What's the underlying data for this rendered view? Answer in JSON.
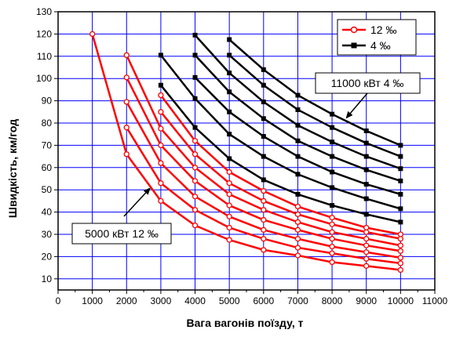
{
  "chart_data": {
    "type": "line",
    "xlabel": "Вага вагонів поїзду, т",
    "ylabel": "Швидкість, км/год",
    "xlim": [
      0,
      11000
    ],
    "ylim": [
      5,
      130
    ],
    "xticks": [
      0,
      1000,
      2000,
      3000,
      4000,
      5000,
      6000,
      7000,
      8000,
      9000,
      10000,
      11000
    ],
    "yticks": [
      10,
      20,
      30,
      40,
      50,
      60,
      70,
      80,
      90,
      100,
      110,
      120,
      130
    ],
    "grid": true,
    "gridColor": "#0000ff",
    "legend": {
      "position": "top-right",
      "items": [
        {
          "label": "12 ‰",
          "color": "#ff0000",
          "marker": "circle"
        },
        {
          "label": "4 ‰",
          "color": "#000000",
          "marker": "square"
        }
      ]
    },
    "annotations": [
      {
        "text": "11000 кВт 4 ‰",
        "box": "top-right",
        "arrow_to": [
          8400,
          82
        ]
      },
      {
        "text": "5000 кВт 12 ‰",
        "box": "bottom-left",
        "arrow_to": [
          2700,
          51
        ]
      }
    ],
    "series": [
      {
        "group": "12 ‰",
        "color": "#ff0000",
        "marker": "circle",
        "x": [
          1000,
          2000,
          3000,
          4000,
          5000,
          6000,
          7000,
          8000,
          9000,
          10000
        ],
        "y": [
          120,
          66,
          45,
          34,
          27.5,
          23,
          20.5,
          17.5,
          15.8,
          14
        ]
      },
      {
        "group": "12 ‰",
        "color": "#ff0000",
        "marker": "circle",
        "x": [
          2000,
          3000,
          4000,
          5000,
          6000,
          7000,
          8000,
          9000,
          10000
        ],
        "y": [
          78,
          53,
          41,
          33,
          28,
          24,
          21.5,
          19,
          17
        ]
      },
      {
        "group": "12 ‰",
        "color": "#ff0000",
        "marker": "circle",
        "x": [
          2000,
          3000,
          4000,
          5000,
          6000,
          7000,
          8000,
          9000,
          10000
        ],
        "y": [
          89.5,
          62,
          47,
          38,
          32,
          28,
          24.5,
          22,
          19.5
        ]
      },
      {
        "group": "12 ‰",
        "color": "#ff0000",
        "marker": "circle",
        "x": [
          2000,
          3000,
          4000,
          5000,
          6000,
          7000,
          8000,
          9000,
          10000
        ],
        "y": [
          100.5,
          70,
          54,
          43,
          36.5,
          32,
          28,
          25,
          22.5
        ]
      },
      {
        "group": "12 ‰",
        "color": "#ff0000",
        "marker": "circle",
        "x": [
          2000,
          3000,
          4000,
          5000,
          6000,
          7000,
          8000,
          9000,
          10000
        ],
        "y": [
          110.5,
          77.5,
          60,
          48,
          41,
          35.5,
          31,
          28,
          25
        ]
      },
      {
        "group": "12 ‰",
        "color": "#ff0000",
        "marker": "circle",
        "x": [
          3000,
          4000,
          5000,
          6000,
          7000,
          8000,
          9000,
          10000
        ],
        "y": [
          85,
          66,
          53,
          45,
          39,
          34.5,
          31,
          28
        ]
      },
      {
        "group": "12 ‰",
        "color": "#ff0000",
        "marker": "circle",
        "x": [
          3000,
          4000,
          5000,
          6000,
          7000,
          8000,
          9000,
          10000
        ],
        "y": [
          92.5,
          72,
          58,
          49.5,
          42.5,
          37.5,
          33,
          30
        ]
      },
      {
        "group": "4 ‰",
        "color": "#000000",
        "marker": "square",
        "x": [
          3000,
          4000,
          5000,
          6000,
          7000,
          8000,
          9000,
          10000
        ],
        "y": [
          97,
          78,
          64,
          54.5,
          48,
          43,
          39,
          35.5
        ]
      },
      {
        "group": "4 ‰",
        "color": "#000000",
        "marker": "square",
        "x": [
          3000,
          4000,
          5000,
          6000,
          7000,
          8000,
          9000,
          10000
        ],
        "y": [
          110.5,
          91,
          75,
          65,
          57,
          51,
          46,
          41.5
        ]
      },
      {
        "group": "4 ‰",
        "color": "#000000",
        "marker": "square",
        "x": [
          4000,
          5000,
          6000,
          7000,
          8000,
          9000,
          10000
        ],
        "y": [
          100.5,
          85,
          74,
          65,
          58,
          52.5,
          48
        ]
      },
      {
        "group": "4 ‰",
        "color": "#000000",
        "marker": "square",
        "x": [
          4000,
          5000,
          6000,
          7000,
          8000,
          9000,
          10000
        ],
        "y": [
          110.5,
          94,
          82,
          72,
          65,
          59,
          54
        ]
      },
      {
        "group": "4 ‰",
        "color": "#000000",
        "marker": "square",
        "x": [
          4000,
          5000,
          6000,
          7000,
          8000,
          9000,
          10000
        ],
        "y": [
          119.5,
          102.5,
          89.5,
          79,
          71.5,
          65,
          59.5
        ]
      },
      {
        "group": "4 ‰",
        "color": "#000000",
        "marker": "square",
        "x": [
          5000,
          6000,
          7000,
          8000,
          9000,
          10000
        ],
        "y": [
          110.5,
          97,
          86,
          78,
          71,
          65
        ]
      },
      {
        "group": "4 ‰",
        "color": "#000000",
        "marker": "square",
        "x": [
          5000,
          6000,
          7000,
          8000,
          9000,
          10000
        ],
        "y": [
          117.5,
          104,
          92.5,
          84,
          76.5,
          70
        ]
      }
    ]
  }
}
